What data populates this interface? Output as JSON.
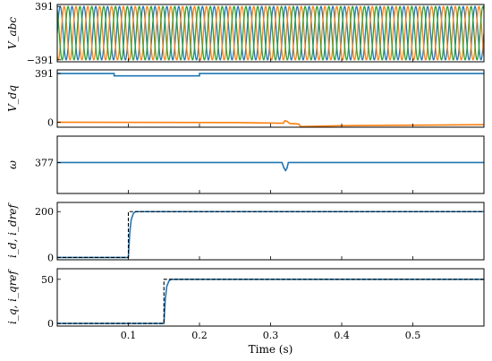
{
  "colors": {
    "blue": "#1f77b4",
    "orange": "#ff7f0e",
    "green": "#2ca02c",
    "black": "#000000"
  },
  "xaxis": {
    "label": "Time (s)",
    "ticks": [
      0.1,
      0.2,
      0.3,
      0.4,
      0.5
    ],
    "tick_labels": [
      "0.1",
      "0.2",
      "0.3",
      "0.4",
      "0.5"
    ],
    "xlim": [
      0,
      0.6
    ]
  },
  "chart_data": [
    {
      "type": "line",
      "ylabel": "V_abc",
      "ylim": [
        -420,
        420
      ],
      "yticks": [
        391,
        -391
      ],
      "ytick_labels": [
        "391",
        "−391"
      ],
      "sine": {
        "amplitude": 391,
        "frequency_hz": 60,
        "phases_deg": [
          0,
          -120,
          120
        ],
        "colors": [
          "blue",
          "orange",
          "green"
        ]
      }
    },
    {
      "type": "line",
      "ylabel": "V_dq",
      "ylim": [
        -40,
        420
      ],
      "yticks": [
        391,
        0
      ],
      "ytick_labels": [
        "391",
        "0"
      ],
      "series": [
        {
          "color": "blue",
          "x": [
            0,
            0.08,
            0.08,
            0.2,
            0.2,
            0.6
          ],
          "y": [
            391,
            391,
            372,
            372,
            391,
            391
          ]
        },
        {
          "color": "orange",
          "x": [
            0,
            0.25,
            0.318,
            0.32,
            0.323,
            0.327,
            0.34,
            0.342,
            0.4,
            0.6
          ],
          "y": [
            0,
            -3,
            -8,
            12,
            8,
            -10,
            -15,
            -35,
            -28,
            -20
          ]
        }
      ]
    },
    {
      "type": "line",
      "ylabel": "ω",
      "ylim": [
        350,
        400
      ],
      "yticks": [
        377
      ],
      "ytick_labels": [
        "377"
      ],
      "series": [
        {
          "color": "blue",
          "x": [
            0,
            0.316,
            0.319,
            0.321,
            0.323,
            0.325,
            0.6
          ],
          "y": [
            377,
            377,
            372,
            370,
            372,
            377,
            377
          ]
        }
      ]
    },
    {
      "type": "line",
      "ylabel": "i_d, i_dref",
      "ylim": [
        -10,
        240
      ],
      "yticks": [
        200,
        0
      ],
      "ytick_labels": [
        "200",
        "0"
      ],
      "series": [
        {
          "color": "blue",
          "x": [
            0,
            0.1,
            0.102,
            0.104,
            0.107,
            0.11,
            0.6
          ],
          "y": [
            0,
            0,
            110,
            165,
            192,
            200,
            200
          ]
        },
        {
          "color": "black",
          "dashed": true,
          "x": [
            0,
            0.1,
            0.1,
            0.6
          ],
          "y": [
            0,
            0,
            200,
            200
          ]
        }
      ]
    },
    {
      "type": "line",
      "ylabel": "i_q, i_qref",
      "ylim": [
        -3,
        62
      ],
      "yticks": [
        50,
        0
      ],
      "ytick_labels": [
        "50",
        "0"
      ],
      "series": [
        {
          "color": "blue",
          "x": [
            0,
            0.15,
            0.152,
            0.154,
            0.157,
            0.16,
            0.6
          ],
          "y": [
            0,
            0,
            28,
            42,
            48,
            50,
            50
          ]
        },
        {
          "color": "black",
          "dashed": true,
          "x": [
            0,
            0.15,
            0.15,
            0.6
          ],
          "y": [
            0,
            0,
            50,
            50
          ]
        }
      ]
    }
  ]
}
